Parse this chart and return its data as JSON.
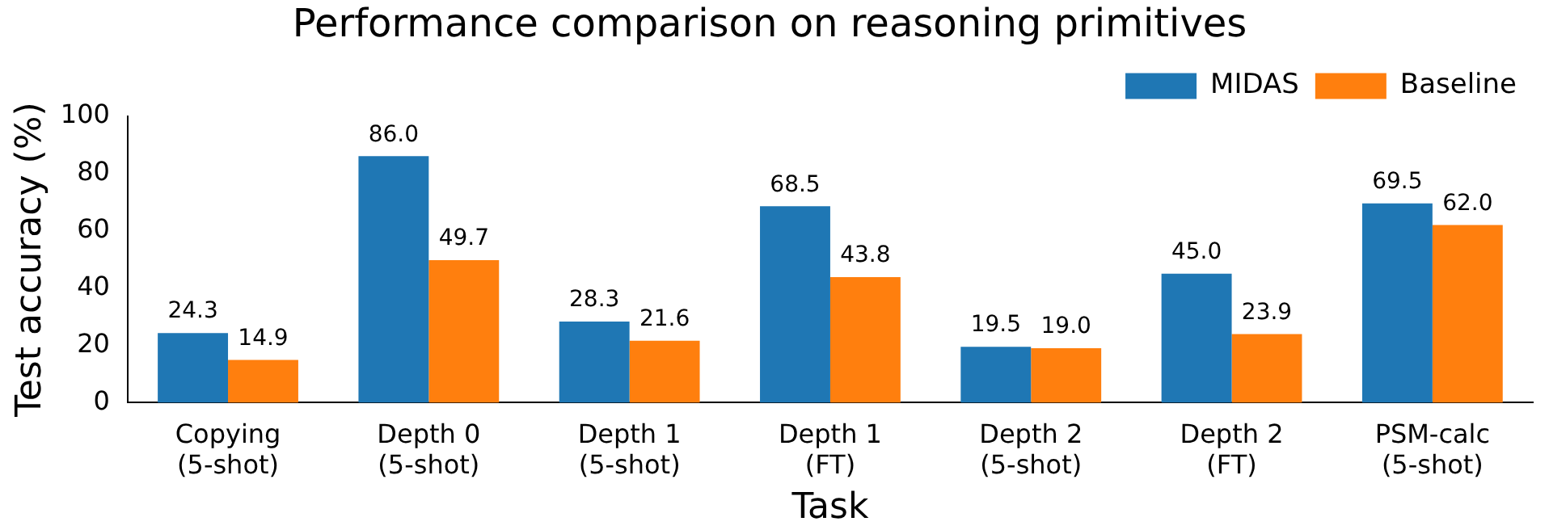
{
  "chart_data": {
    "type": "bar",
    "title": "Performance comparison on reasoning primitives",
    "xlabel": "Task",
    "ylabel": "Test accuracy (%)",
    "categories": [
      "Copying\n(5-shot)",
      "Depth 0\n(5-shot)",
      "Depth 1\n(5-shot)",
      "Depth 1\n(FT)",
      "Depth 2\n(5-shot)",
      "Depth 2\n(FT)",
      "PSM-calc\n(5-shot)"
    ],
    "series": [
      {
        "name": "MIDAS",
        "color": "#1f77b4",
        "values": [
          24.3,
          86.0,
          28.3,
          68.5,
          19.5,
          45.0,
          69.5
        ],
        "value_labels": [
          "24.3",
          "86.0",
          "28.3",
          "68.5",
          "19.5",
          "45.0",
          "69.5"
        ]
      },
      {
        "name": "Baseline",
        "color": "#ff7f0e",
        "values": [
          14.9,
          49.7,
          21.6,
          43.8,
          19.0,
          23.9,
          62.0
        ],
        "value_labels": [
          "14.9",
          "49.7",
          "21.6",
          "43.8",
          "19.0",
          "23.9",
          "62.0"
        ]
      }
    ],
    "ylim": [
      0,
      100
    ],
    "yticks": [
      0,
      20,
      40,
      60,
      80,
      100
    ],
    "grid": false,
    "legend": "top right"
  }
}
